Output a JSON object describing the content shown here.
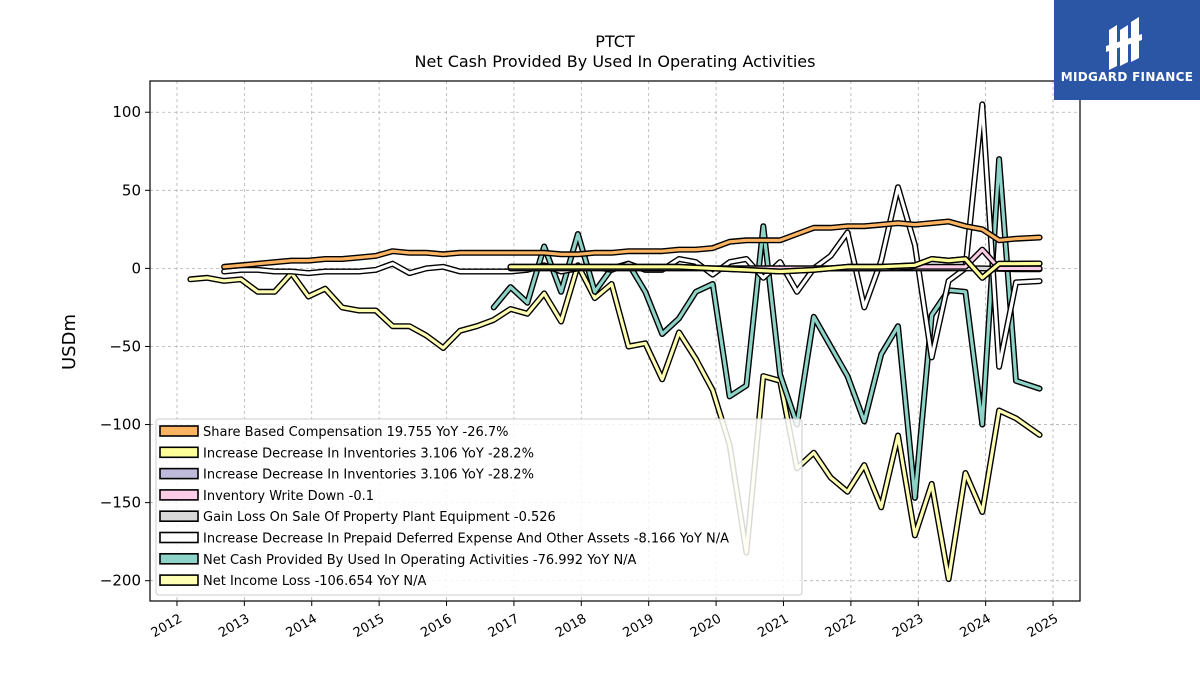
{
  "logo": {
    "text": "MIDGARD FINANCE",
    "bg": "#2b56a6"
  },
  "chart_data": {
    "type": "line",
    "title": "PTCT",
    "subtitle": "Net Cash Provided By Used In Operating Activities",
    "ylabel": "USDm",
    "xlim": [
      2011.6,
      2025.4
    ],
    "ylim": [
      -213,
      120
    ],
    "xticks": [
      2012,
      2013,
      2014,
      2015,
      2016,
      2017,
      2018,
      2019,
      2020,
      2021,
      2022,
      2023,
      2024,
      2025
    ],
    "yticks": [
      100,
      50,
      0,
      -50,
      -100,
      -150,
      -200
    ],
    "ytick_labels": [
      "100",
      "50",
      "0",
      "−50",
      "−100",
      "−150",
      "−200"
    ],
    "grid": true,
    "legend_position": "lower-left",
    "series": [
      {
        "name": "Net Income Loss  -106.654 YoY N/A",
        "color": "#ffffb3",
        "x": [
          2012.2,
          2012.45,
          2012.7,
          2012.95,
          2013.2,
          2013.45,
          2013.7,
          2013.95,
          2014.2,
          2014.45,
          2014.7,
          2014.95,
          2015.2,
          2015.45,
          2015.7,
          2015.95,
          2016.2,
          2016.45,
          2016.7,
          2016.95,
          2017.2,
          2017.45,
          2017.7,
          2017.95,
          2018.2,
          2018.45,
          2018.7,
          2018.95,
          2019.2,
          2019.45,
          2019.7,
          2019.95,
          2020.2,
          2020.45,
          2020.7,
          2020.95,
          2021.2,
          2021.45,
          2021.7,
          2021.95,
          2022.2,
          2022.45,
          2022.7,
          2022.95,
          2023.2,
          2023.45,
          2023.7,
          2023.95,
          2024.2,
          2024.45,
          2024.8
        ],
        "y": [
          -7,
          -6,
          -8,
          -7,
          -15,
          -15,
          -3,
          -18,
          -13,
          -25,
          -27,
          -27,
          -37,
          -37,
          -43,
          -51,
          -40,
          -37,
          -33,
          -26,
          -29,
          -16,
          -34,
          2,
          -19,
          -10,
          -50,
          -48,
          -71,
          -41,
          -58,
          -78,
          -113,
          -182,
          -69,
          -72,
          -128,
          -118,
          -134,
          -143,
          -126,
          -153,
          -107,
          -171,
          -138,
          -199,
          -131,
          -156,
          -91,
          -96,
          -106.654
        ]
      },
      {
        "name": "Net Cash Provided By Used In Operating Activities  -76.992 YoY N/A",
        "color": "#8dd3c7",
        "x": [
          2016.7,
          2016.95,
          2017.2,
          2017.45,
          2017.7,
          2017.95,
          2018.2,
          2018.45,
          2018.7,
          2018.95,
          2019.2,
          2019.45,
          2019.7,
          2019.95,
          2020.2,
          2020.45,
          2020.7,
          2020.95,
          2021.2,
          2021.45,
          2021.7,
          2021.95,
          2022.2,
          2022.45,
          2022.7,
          2022.95,
          2023.2,
          2023.45,
          2023.7,
          2023.95,
          2024.2,
          2024.45,
          2024.8
        ],
        "y": [
          -25,
          -12,
          -22,
          14,
          -15,
          22,
          -15,
          0,
          3,
          -15,
          -42,
          -32,
          -15,
          -10,
          -82,
          -75,
          27,
          -68,
          -100,
          -31,
          -50,
          -69,
          -98,
          -55,
          -37,
          -147,
          -30,
          -14,
          -15,
          -100,
          70,
          -72,
          -76.992
        ]
      },
      {
        "name": "Increase Decrease In Prepaid Deferred Expense And Other Assets  -8.166 YoY N/A",
        "color": "#ffffff",
        "x": [
          2012.7,
          2012.95,
          2013.2,
          2013.45,
          2013.7,
          2013.95,
          2014.2,
          2014.45,
          2014.7,
          2014.95,
          2015.2,
          2015.45,
          2015.7,
          2015.95,
          2016.2,
          2016.45,
          2016.7,
          2016.95,
          2017.2,
          2017.45,
          2017.7,
          2017.95,
          2018.2,
          2018.45,
          2018.7,
          2018.95,
          2019.2,
          2019.45,
          2019.7,
          2019.95,
          2020.2,
          2020.45,
          2020.7,
          2020.95,
          2021.2,
          2021.45,
          2021.7,
          2021.95,
          2022.2,
          2022.45,
          2022.7,
          2022.95,
          2023.2,
          2023.45,
          2023.7,
          2023.95,
          2024.2,
          2024.45,
          2024.8
        ],
        "y": [
          -2,
          -1,
          -1,
          -2,
          -2,
          -3,
          -2,
          -2,
          -2,
          -1,
          3,
          -3,
          0,
          1,
          -2,
          -2,
          -2,
          -2,
          -1,
          2,
          -2,
          0,
          1,
          -1,
          3,
          -1,
          -1,
          6,
          4,
          -4,
          4,
          6,
          -6,
          4,
          -15,
          0,
          8,
          23,
          -25,
          5,
          52,
          15,
          -57,
          -8,
          0,
          105,
          -63,
          -9,
          -8.166
        ]
      },
      {
        "name": "Gain Loss On Sale Of Property Plant Equipment  -0.526",
        "color": "#d9d9d9",
        "x": [
          2016.95,
          2017.45,
          2017.95,
          2018.45,
          2018.95,
          2019.45,
          2019.95,
          2020.45,
          2020.95,
          2021.45,
          2021.95,
          2022.45,
          2022.95,
          2023.45,
          2023.95,
          2024.45,
          2024.8
        ],
        "y": [
          0,
          0,
          0,
          0,
          0,
          0,
          0,
          0,
          0,
          0,
          0,
          0,
          0,
          0,
          0,
          -0.5,
          -0.526
        ]
      },
      {
        "name": "Inventory Write Down  -0.1",
        "color": "#fccde5",
        "x": [
          2019.95,
          2020.45,
          2020.95,
          2021.45,
          2021.95,
          2022.45,
          2022.95,
          2023.45,
          2023.7,
          2023.95,
          2024.2,
          2024.45,
          2024.8
        ],
        "y": [
          0,
          0,
          0,
          0,
          0,
          0,
          1,
          1,
          1,
          12,
          0,
          0,
          -0.1
        ]
      },
      {
        "name": "Increase Decrease In Inventories  3.106 YoY -28.2%",
        "color": "#bebada",
        "x": [
          2016.95,
          2017.45,
          2017.95,
          2018.45,
          2018.95,
          2019.45,
          2019.95,
          2020.45,
          2020.95,
          2021.45,
          2021.95,
          2022.45,
          2022.95,
          2023.2,
          2023.45,
          2023.7,
          2023.95,
          2024.2,
          2024.45,
          2024.8
        ],
        "y": [
          1,
          1,
          1,
          1,
          1,
          1,
          0,
          -1,
          -2,
          -1,
          1,
          1,
          2,
          6,
          5,
          6,
          -6,
          3,
          3,
          3.106
        ]
      },
      {
        "name": "Increase Decrease In Inventories  3.106 YoY -28.2%",
        "color": "#ffff99",
        "x": [
          2016.95,
          2017.45,
          2017.95,
          2018.45,
          2018.95,
          2019.45,
          2019.95,
          2020.45,
          2020.95,
          2021.45,
          2021.95,
          2022.45,
          2022.95,
          2023.2,
          2023.45,
          2023.7,
          2023.95,
          2024.2,
          2024.45,
          2024.8
        ],
        "y": [
          1,
          1,
          1,
          1,
          1,
          1,
          0,
          -1,
          -2,
          -1,
          1,
          1,
          2,
          6,
          5,
          6,
          -6,
          3,
          3,
          3.106
        ]
      },
      {
        "name": "Share Based Compensation  19.755 YoY -26.7%",
        "color": "#fdb462",
        "x": [
          2012.7,
          2012.95,
          2013.2,
          2013.45,
          2013.7,
          2013.95,
          2014.2,
          2014.45,
          2014.7,
          2014.95,
          2015.2,
          2015.45,
          2015.7,
          2015.95,
          2016.2,
          2016.45,
          2016.7,
          2016.95,
          2017.2,
          2017.45,
          2017.7,
          2017.95,
          2018.2,
          2018.45,
          2018.7,
          2018.95,
          2019.2,
          2019.45,
          2019.7,
          2019.95,
          2020.2,
          2020.45,
          2020.7,
          2020.95,
          2021.2,
          2021.45,
          2021.7,
          2021.95,
          2022.2,
          2022.45,
          2022.7,
          2022.95,
          2023.2,
          2023.45,
          2023.7,
          2023.95,
          2024.2,
          2024.45,
          2024.8
        ],
        "y": [
          1,
          2,
          3,
          4,
          5,
          5,
          6,
          6,
          7,
          8,
          11,
          10,
          10,
          9,
          10,
          10,
          10,
          10,
          10,
          10,
          9,
          9,
          10,
          10,
          11,
          11,
          11,
          12,
          12,
          13,
          17,
          18,
          18,
          18,
          22,
          26,
          26,
          27,
          27,
          28,
          29,
          28,
          29,
          30,
          27,
          25,
          18,
          19,
          19.755
        ]
      }
    ],
    "legend": [
      {
        "label": "Share Based Compensation  19.755 YoY -26.7%",
        "color": "#fdb462"
      },
      {
        "label": "Increase Decrease In Inventories  3.106 YoY -28.2%",
        "color": "#ffff99"
      },
      {
        "label": "Increase Decrease In Inventories  3.106 YoY -28.2%",
        "color": "#bebada"
      },
      {
        "label": "Inventory Write Down  -0.1",
        "color": "#fccde5"
      },
      {
        "label": "Gain Loss On Sale Of Property Plant Equipment  -0.526",
        "color": "#d9d9d9"
      },
      {
        "label": "Increase Decrease In Prepaid Deferred Expense And Other Assets  -8.166 YoY N/A",
        "color": "#ffffff"
      },
      {
        "label": "Net Cash Provided By Used In Operating Activities  -76.992 YoY N/A",
        "color": "#8dd3c7"
      },
      {
        "label": "Net Income Loss  -106.654 YoY N/A",
        "color": "#ffffb3"
      }
    ]
  }
}
